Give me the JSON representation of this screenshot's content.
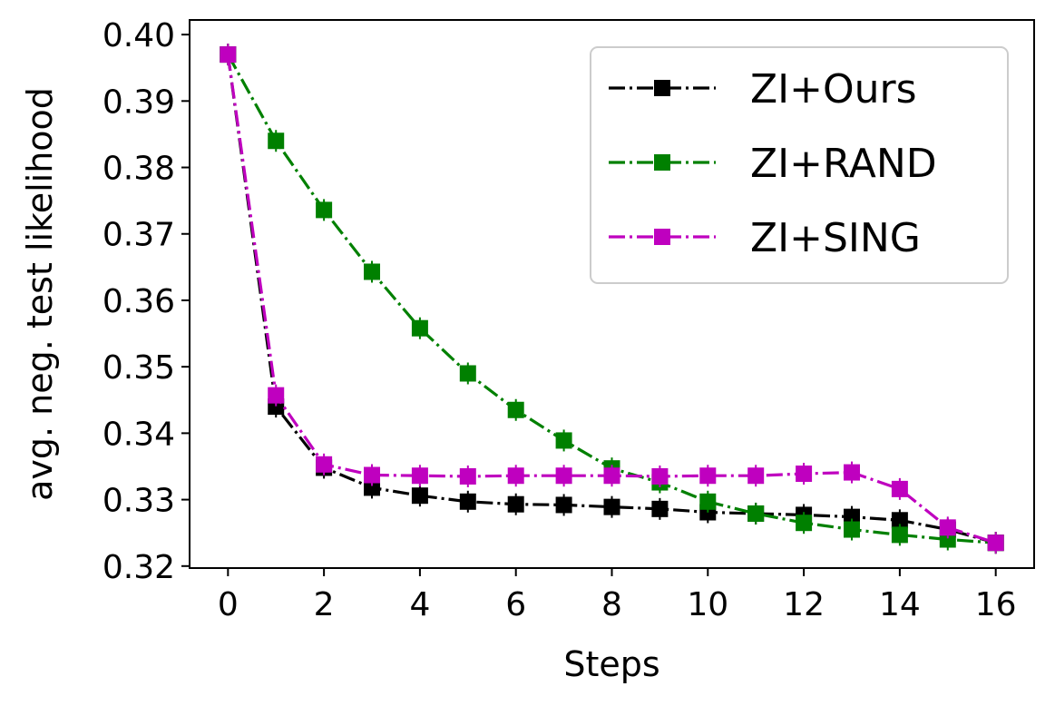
{
  "chart_data": {
    "type": "line",
    "xlabel": "Steps",
    "ylabel": "avg. neg. test likelihood",
    "xlim": [
      -0.8,
      16.8
    ],
    "ylim": [
      0.3197,
      0.4022
    ],
    "x_ticks": [
      0,
      2,
      4,
      6,
      8,
      10,
      12,
      14,
      16
    ],
    "x_tick_labels": [
      "0",
      "2",
      "4",
      "6",
      "8",
      "10",
      "12",
      "14",
      "16"
    ],
    "y_ticks": [
      0.32,
      0.33,
      0.34,
      0.35,
      0.36,
      0.37,
      0.38,
      0.39,
      0.4
    ],
    "y_tick_labels": [
      "0.32",
      "0.33",
      "0.34",
      "0.35",
      "0.36",
      "0.37",
      "0.38",
      "0.39",
      "0.40"
    ],
    "grid": false,
    "legend_position": "top-right",
    "x": [
      0,
      1,
      2,
      3,
      4,
      5,
      6,
      7,
      8,
      9,
      10,
      11,
      12,
      13,
      14,
      15,
      16
    ],
    "series": [
      {
        "name": "ZI+Ours",
        "color": "#000000",
        "marker": "square",
        "line_style": "dash-dot",
        "values": [
          0.397,
          0.344,
          0.3348,
          0.3318,
          0.3306,
          0.3297,
          0.3293,
          0.3292,
          0.3289,
          0.3286,
          0.3281,
          0.3279,
          0.3277,
          0.3274,
          0.3269,
          0.3255,
          0.3235
        ]
      },
      {
        "name": "ZI+RAND",
        "color": "#008000",
        "marker": "square",
        "line_style": "dash-dot",
        "values": [
          0.397,
          0.384,
          0.3736,
          0.3643,
          0.3558,
          0.349,
          0.3435,
          0.3389,
          0.3347,
          0.3326,
          0.3297,
          0.3279,
          0.3265,
          0.3255,
          0.3247,
          0.324,
          0.3235
        ]
      },
      {
        "name": "ZI+SING",
        "color": "#bf00bf",
        "marker": "square",
        "line_style": "dash-dot",
        "values": [
          0.397,
          0.3457,
          0.3353,
          0.3337,
          0.3336,
          0.3335,
          0.3336,
          0.3336,
          0.3336,
          0.3335,
          0.3336,
          0.3336,
          0.3339,
          0.3341,
          0.3316,
          0.3258,
          0.3235
        ]
      }
    ]
  }
}
